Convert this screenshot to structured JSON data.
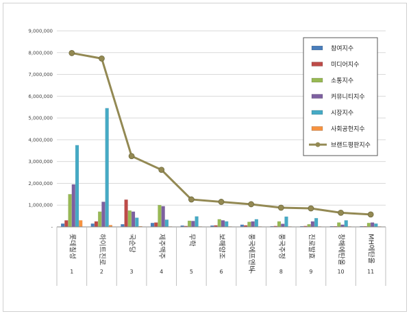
{
  "chart_data": {
    "type": "bar",
    "y_ticks": [
      "-",
      "1,000,000",
      "2,000,000",
      "3,000,000",
      "4,000,000",
      "5,000,000",
      "6,000,000",
      "7,000,000",
      "8,000,000",
      "9,000,000"
    ],
    "ylim": [
      0,
      9000000
    ],
    "grid": true,
    "legend_position": "top-right",
    "categories": [
      "롯데칠성",
      "하이트진로",
      "국순당",
      "제주맥주",
      "무학",
      "보해양조",
      "풍국에프엔비",
      "풍국주정",
      "진로발효",
      "창해에탄올",
      "MH에탄올"
    ],
    "category_numbers": [
      "1",
      "2",
      "3",
      "4",
      "5",
      "6",
      "7",
      "8",
      "9",
      "10",
      "11"
    ],
    "series": [
      {
        "name": "참여지수",
        "color": "#4a7ebb",
        "values": [
          150000,
          150000,
          120000,
          180000,
          60000,
          60000,
          100000,
          30000,
          30000,
          30000,
          30000
        ]
      },
      {
        "name": "미디어지수",
        "color": "#be4b48",
        "values": [
          300000,
          250000,
          1250000,
          200000,
          40000,
          70000,
          70000,
          40000,
          40000,
          30000,
          30000
        ]
      },
      {
        "name": "소통지수",
        "color": "#98b954",
        "values": [
          1500000,
          700000,
          750000,
          1000000,
          280000,
          350000,
          230000,
          250000,
          120000,
          200000,
          180000
        ]
      },
      {
        "name": "커뮤니티지수",
        "color": "#7d60a0",
        "values": [
          1950000,
          1150000,
          700000,
          950000,
          270000,
          300000,
          250000,
          140000,
          250000,
          100000,
          200000
        ]
      },
      {
        "name": "시장지수",
        "color": "#46aac5",
        "values": [
          3750000,
          5450000,
          420000,
          330000,
          480000,
          250000,
          350000,
          470000,
          400000,
          300000,
          150000
        ]
      },
      {
        "name": "사회공헌지수",
        "color": "#f69240",
        "values": [
          300000,
          80000,
          30000,
          20000,
          20000,
          20000,
          20000,
          20000,
          20000,
          20000,
          20000
        ]
      },
      {
        "name": "브랜드평판지수",
        "color": "#938953",
        "type": "line",
        "values": [
          7980000,
          7730000,
          3250000,
          2620000,
          1260000,
          1150000,
          1040000,
          880000,
          850000,
          650000,
          570000
        ]
      }
    ]
  }
}
